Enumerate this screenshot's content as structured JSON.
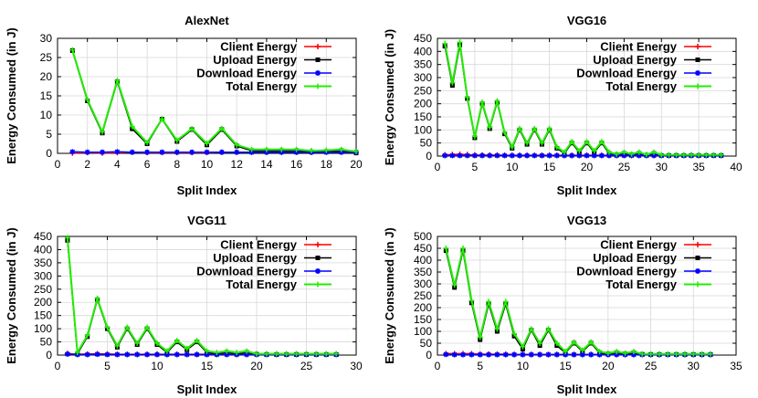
{
  "chart_data": [
    {
      "type": "line",
      "title": "AlexNet",
      "xlabel": "Split Index",
      "ylabel": "Energy Consumed (in J)",
      "xlim": [
        0,
        20
      ],
      "ylim": [
        0,
        30
      ],
      "xticks": [
        0,
        2,
        4,
        6,
        8,
        10,
        12,
        14,
        16,
        18,
        20
      ],
      "yticks": [
        0,
        5,
        10,
        15,
        20,
        25,
        30
      ],
      "grid": true,
      "legend_position": "top-right",
      "x": [
        1,
        2,
        3,
        4,
        5,
        6,
        7,
        8,
        9,
        10,
        11,
        12,
        13,
        14,
        15,
        16,
        17,
        18,
        19,
        20
      ],
      "series": [
        {
          "name": "Client Energy",
          "color": "#ff0000",
          "values": [
            0.1,
            0.2,
            0.1,
            0.2,
            0.3,
            0.2,
            0.2,
            0.2,
            0.2,
            0.2,
            0.3,
            0.3,
            0.3,
            0.3,
            0.3,
            0.3,
            0.3,
            0.4,
            0.4,
            0.4
          ]
        },
        {
          "name": "Upload Energy",
          "color": "#000000",
          "values": [
            26.8,
            13.7,
            5.3,
            18.7,
            6.4,
            2.5,
            8.9,
            3.1,
            6.2,
            2.2,
            6.2,
            1.9,
            0.7,
            0.7,
            0.7,
            0.7,
            0.4,
            0.5,
            0.7,
            0.1
          ]
        },
        {
          "name": "Download Energy",
          "color": "#0000ff",
          "values": [
            0.4,
            0.3,
            0.3,
            0.4,
            0.3,
            0.3,
            0.3,
            0.3,
            0.3,
            0.3,
            0.3,
            0.3,
            0.3,
            0.3,
            0.3,
            0.3,
            0.3,
            0.3,
            0.3,
            0.3
          ]
        },
        {
          "name": "Total Energy",
          "color": "#22ee00",
          "values": [
            27.0,
            14.0,
            5.6,
            19.0,
            7.0,
            2.8,
            9.0,
            3.4,
            6.4,
            2.6,
            6.5,
            2.2,
            1.0,
            1.0,
            1.0,
            1.0,
            0.7,
            0.8,
            1.0,
            0.5
          ]
        }
      ]
    },
    {
      "type": "line",
      "title": "VGG16",
      "xlabel": "Split Index",
      "ylabel": "Energy Consumed (in J)",
      "xlim": [
        0,
        40
      ],
      "ylim": [
        0,
        450
      ],
      "xticks": [
        0,
        5,
        10,
        15,
        20,
        25,
        30,
        35,
        40
      ],
      "yticks": [
        0,
        50,
        100,
        150,
        200,
        250,
        300,
        350,
        400,
        450
      ],
      "grid": true,
      "legend_position": "top-right",
      "x": [
        1,
        2,
        3,
        4,
        5,
        6,
        7,
        8,
        9,
        10,
        11,
        12,
        13,
        14,
        15,
        16,
        17,
        18,
        19,
        20,
        21,
        22,
        23,
        24,
        25,
        26,
        27,
        28,
        29,
        30,
        31,
        32,
        33,
        34,
        35,
        36,
        37,
        38
      ],
      "series": [
        {
          "name": "Client Energy",
          "color": "#ff0000",
          "values": [
            5,
            6,
            7,
            6,
            4,
            4,
            4,
            4,
            3,
            3,
            3,
            3,
            3,
            3,
            3,
            3,
            3,
            3,
            3,
            3,
            3,
            3,
            3,
            3,
            3,
            3,
            3,
            3,
            3,
            3,
            3,
            3,
            3,
            3,
            3,
            3,
            3,
            3
          ]
        },
        {
          "name": "Upload Energy",
          "color": "#000000",
          "values": [
            420,
            270,
            425,
            220,
            70,
            200,
            105,
            205,
            85,
            30,
            100,
            45,
            100,
            45,
            100,
            30,
            10,
            50,
            15,
            50,
            15,
            50,
            10,
            5,
            10,
            5,
            10,
            3,
            10,
            2,
            2,
            2,
            2,
            2,
            2,
            2,
            2,
            2
          ]
        },
        {
          "name": "Download Energy",
          "color": "#0000ff",
          "values": [
            2,
            2,
            2,
            2,
            2,
            2,
            2,
            2,
            2,
            2,
            2,
            2,
            2,
            2,
            2,
            2,
            2,
            2,
            2,
            2,
            2,
            2,
            2,
            2,
            2,
            2,
            2,
            2,
            2,
            2,
            2,
            2,
            2,
            2,
            2,
            2,
            2,
            2
          ]
        },
        {
          "name": "Total Energy",
          "color": "#22ee00",
          "values": [
            430,
            280,
            435,
            225,
            75,
            205,
            110,
            210,
            90,
            35,
            105,
            50,
            105,
            50,
            105,
            35,
            15,
            55,
            20,
            55,
            20,
            55,
            15,
            8,
            15,
            8,
            15,
            6,
            15,
            5,
            5,
            5,
            5,
            5,
            5,
            5,
            5,
            5
          ]
        }
      ]
    },
    {
      "type": "line",
      "title": "VGG11",
      "xlabel": "Split Index",
      "ylabel": "Energy Consumed (in J)",
      "xlim": [
        0,
        30
      ],
      "ylim": [
        0,
        450
      ],
      "xticks": [
        0,
        5,
        10,
        15,
        20,
        25,
        30
      ],
      "yticks": [
        0,
        50,
        100,
        150,
        200,
        250,
        300,
        350,
        400,
        450
      ],
      "grid": true,
      "legend_position": "top-right",
      "x": [
        1,
        2,
        3,
        4,
        5,
        6,
        7,
        8,
        9,
        10,
        11,
        12,
        13,
        14,
        15,
        16,
        17,
        18,
        19,
        20,
        21,
        22,
        23,
        24,
        25,
        26,
        27,
        28
      ],
      "series": [
        {
          "name": "Client Energy",
          "color": "#ff0000",
          "values": [
            6,
            3,
            4,
            5,
            4,
            3,
            3,
            3,
            3,
            3,
            3,
            3,
            3,
            3,
            3,
            3,
            3,
            3,
            3,
            3,
            3,
            3,
            3,
            3,
            3,
            3,
            3,
            3
          ]
        },
        {
          "name": "Upload Energy",
          "color": "#000000",
          "values": [
            435,
            5,
            70,
            210,
            100,
            30,
            100,
            40,
            100,
            40,
            10,
            50,
            20,
            50,
            10,
            5,
            10,
            5,
            10,
            3,
            2,
            2,
            2,
            2,
            2,
            2,
            2,
            2
          ]
        },
        {
          "name": "Download Energy",
          "color": "#0000ff",
          "values": [
            4,
            2,
            2,
            3,
            2,
            2,
            2,
            2,
            2,
            2,
            2,
            2,
            2,
            2,
            2,
            2,
            2,
            2,
            2,
            2,
            2,
            2,
            2,
            2,
            2,
            2,
            2,
            2
          ]
        },
        {
          "name": "Total Energy",
          "color": "#22ee00",
          "values": [
            445,
            10,
            75,
            215,
            105,
            35,
            105,
            45,
            105,
            45,
            15,
            55,
            25,
            55,
            15,
            10,
            15,
            10,
            15,
            5,
            5,
            5,
            5,
            5,
            5,
            5,
            5,
            5
          ]
        }
      ]
    },
    {
      "type": "line",
      "title": "VGG13",
      "xlabel": "Split Index",
      "ylabel": "Energy Consumed (in J)",
      "xlim": [
        0,
        35
      ],
      "ylim": [
        0,
        500
      ],
      "xticks": [
        0,
        5,
        10,
        15,
        20,
        25,
        30,
        35
      ],
      "yticks": [
        0,
        50,
        100,
        150,
        200,
        250,
        300,
        350,
        400,
        450,
        500
      ],
      "grid": true,
      "legend_position": "top-right",
      "x": [
        1,
        2,
        3,
        4,
        5,
        6,
        7,
        8,
        9,
        10,
        11,
        12,
        13,
        14,
        15,
        16,
        17,
        18,
        19,
        20,
        21,
        22,
        23,
        24,
        25,
        26,
        27,
        28,
        29,
        30,
        31,
        32
      ],
      "series": [
        {
          "name": "Client Energy",
          "color": "#ff0000",
          "values": [
            6,
            6,
            6,
            6,
            4,
            4,
            4,
            4,
            3,
            3,
            3,
            3,
            3,
            3,
            3,
            3,
            3,
            3,
            3,
            3,
            3,
            3,
            3,
            3,
            3,
            3,
            3,
            3,
            3,
            3,
            3,
            3
          ]
        },
        {
          "name": "Upload Energy",
          "color": "#000000",
          "values": [
            440,
            285,
            440,
            220,
            65,
            215,
            100,
            215,
            80,
            25,
            105,
            40,
            105,
            40,
            10,
            50,
            15,
            50,
            10,
            5,
            10,
            5,
            10,
            3,
            2,
            2,
            2,
            2,
            2,
            2,
            2,
            2
          ]
        },
        {
          "name": "Download Energy",
          "color": "#0000ff",
          "values": [
            3,
            2,
            2,
            2,
            2,
            2,
            2,
            2,
            2,
            2,
            2,
            2,
            2,
            2,
            2,
            2,
            2,
            2,
            2,
            2,
            2,
            2,
            2,
            2,
            2,
            2,
            2,
            2,
            2,
            2,
            2,
            2
          ]
        },
        {
          "name": "Total Energy",
          "color": "#22ee00",
          "values": [
            450,
            295,
            450,
            230,
            75,
            225,
            110,
            225,
            90,
            35,
            110,
            50,
            110,
            50,
            15,
            55,
            20,
            55,
            15,
            8,
            15,
            8,
            15,
            5,
            5,
            5,
            5,
            5,
            5,
            5,
            5,
            5
          ]
        }
      ]
    }
  ]
}
